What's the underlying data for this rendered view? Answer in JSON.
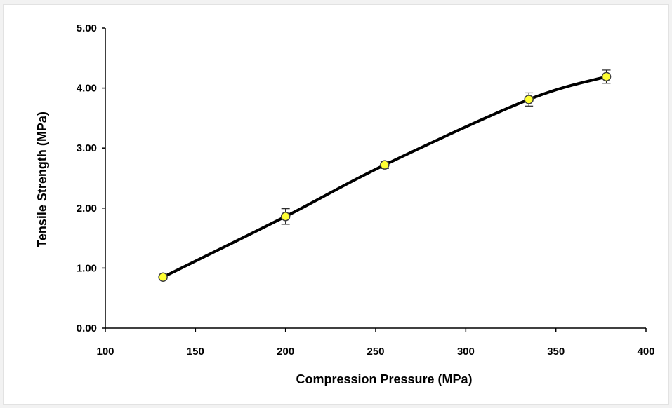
{
  "chart_data": {
    "type": "line",
    "title": "",
    "xlabel": "Compression Pressure (MPa)",
    "ylabel": "Tensile Strength (MPa)",
    "xlim": [
      100,
      400
    ],
    "ylim": [
      0,
      5
    ],
    "xticks": [
      100,
      150,
      200,
      250,
      300,
      350,
      400
    ],
    "xtick_labels": [
      "100",
      "150",
      "200",
      "250",
      "300",
      "350",
      "400"
    ],
    "yticks": [
      0,
      1,
      2,
      3,
      4,
      5
    ],
    "ytick_labels": [
      "0.00",
      "1.00",
      "2.00",
      "3.00",
      "4.00",
      "5.00"
    ],
    "grid": false,
    "legend": "none",
    "series": [
      {
        "x": [
          132,
          200,
          255,
          335,
          378
        ],
        "y": [
          0.85,
          1.86,
          2.72,
          3.81,
          4.19
        ],
        "error": [
          0.04,
          0.13,
          0.06,
          0.11,
          0.11
        ],
        "line_color": "#000000",
        "marker_color": "#ffff33",
        "marker_edge": "#404040"
      }
    ]
  }
}
